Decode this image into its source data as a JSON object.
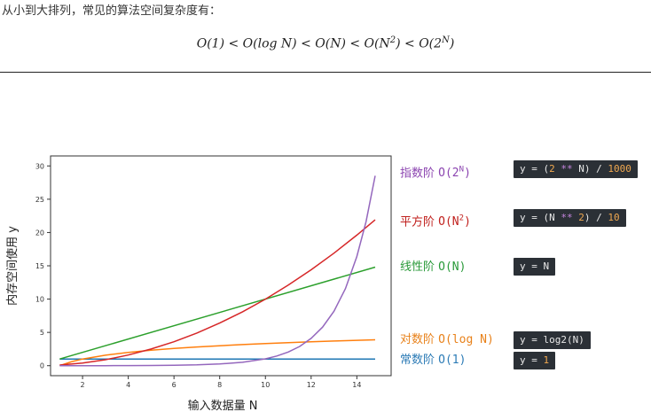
{
  "intro": "从小到大排列，常见的算法空间复杂度有：",
  "formula": {
    "t1": "O(1) < O(log N) < O(N) < O(N",
    "sup1": "2",
    "t2": ") < O(2",
    "sup2": "N",
    "t3": ")"
  },
  "chart_data": {
    "type": "line",
    "xlabel": "输入数据量 N",
    "ylabel": "内存空间使用 y",
    "xlim": [
      0.6,
      15.5
    ],
    "ylim": [
      -1.5,
      31.5
    ],
    "xticks": [
      2,
      4,
      6,
      8,
      10,
      12,
      14
    ],
    "yticks": [
      0,
      5,
      10,
      15,
      20,
      25,
      30
    ],
    "grid": false,
    "series": [
      {
        "name": "常数阶 O(1)",
        "formula": "y = 1",
        "color": "#1f77b4",
        "x": [
          1,
          2,
          3,
          4,
          5,
          6,
          7,
          8,
          9,
          10,
          11,
          12,
          13,
          14,
          14.8
        ],
        "y": [
          1,
          1,
          1,
          1,
          1,
          1,
          1,
          1,
          1,
          1,
          1,
          1,
          1,
          1,
          1
        ]
      },
      {
        "name": "对数阶 O(log N)",
        "formula": "y = log2(N)",
        "color": "#ff7f0e",
        "x": [
          1,
          1.5,
          2,
          3,
          4,
          5,
          6,
          7,
          8,
          9,
          10,
          11,
          12,
          13,
          14,
          14.8
        ],
        "y": [
          0,
          0.58,
          1,
          1.58,
          2,
          2.32,
          2.58,
          2.81,
          3,
          3.17,
          3.32,
          3.46,
          3.58,
          3.7,
          3.81,
          3.89
        ]
      },
      {
        "name": "线性阶 O(N)",
        "formula": "y = N",
        "color": "#2ca02c",
        "x": [
          1,
          14.8
        ],
        "y": [
          1,
          14.8
        ]
      },
      {
        "name": "平方阶 O(N²)",
        "formula": "y = (N ** 2) / 10",
        "color": "#d62728",
        "x": [
          1,
          2,
          3,
          4,
          5,
          6,
          7,
          8,
          9,
          10,
          11,
          12,
          13,
          14,
          14.8
        ],
        "y": [
          0.1,
          0.4,
          0.9,
          1.6,
          2.5,
          3.6,
          4.9,
          6.4,
          8.1,
          10,
          12.1,
          14.4,
          16.9,
          19.6,
          21.9
        ]
      },
      {
        "name": "指数阶 O(2ᴺ)",
        "formula": "y = (2 ** N) / 1000",
        "color": "#9467bd",
        "x": [
          1,
          2,
          3,
          4,
          5,
          6,
          7,
          8,
          9,
          10,
          10.5,
          11,
          11.5,
          12,
          12.5,
          13,
          13.5,
          14,
          14.4,
          14.8
        ],
        "y": [
          0.002,
          0.004,
          0.008,
          0.016,
          0.032,
          0.064,
          0.128,
          0.256,
          0.512,
          1.024,
          1.448,
          2.048,
          2.896,
          4.096,
          5.793,
          8.192,
          11.585,
          16.384,
          21.619,
          28.526
        ]
      }
    ]
  },
  "legend": {
    "exp": {
      "name": "指数阶",
      "notation": "O(2",
      "sup": "N",
      "close": ")",
      "color": "#8b44b0"
    },
    "quad": {
      "name": "平方阶",
      "notation": "O(N",
      "sup": "2",
      "close": ")",
      "color": "#c0201d"
    },
    "linear": {
      "name": "线性阶",
      "notation": "O(N)",
      "color": "#2a9a3a"
    },
    "log": {
      "name": "对数阶",
      "notation": "O(log N)",
      "color": "#e8811a"
    },
    "const": {
      "name": "常数阶",
      "notation": "O(1)",
      "color": "#2c7bb6"
    }
  },
  "code": {
    "exp": {
      "a": "y = (",
      "b": "2",
      "c": " ** ",
      "d": "N) / ",
      "e": "1000"
    },
    "quad": {
      "a": "y = (N ",
      "b": "**",
      "c": " ",
      "d": "2",
      "e": ") / ",
      "f": "10"
    },
    "linear": "y = N",
    "log": {
      "a": "y = log2(N)"
    },
    "const": {
      "a": "y = ",
      "b": "1"
    }
  }
}
